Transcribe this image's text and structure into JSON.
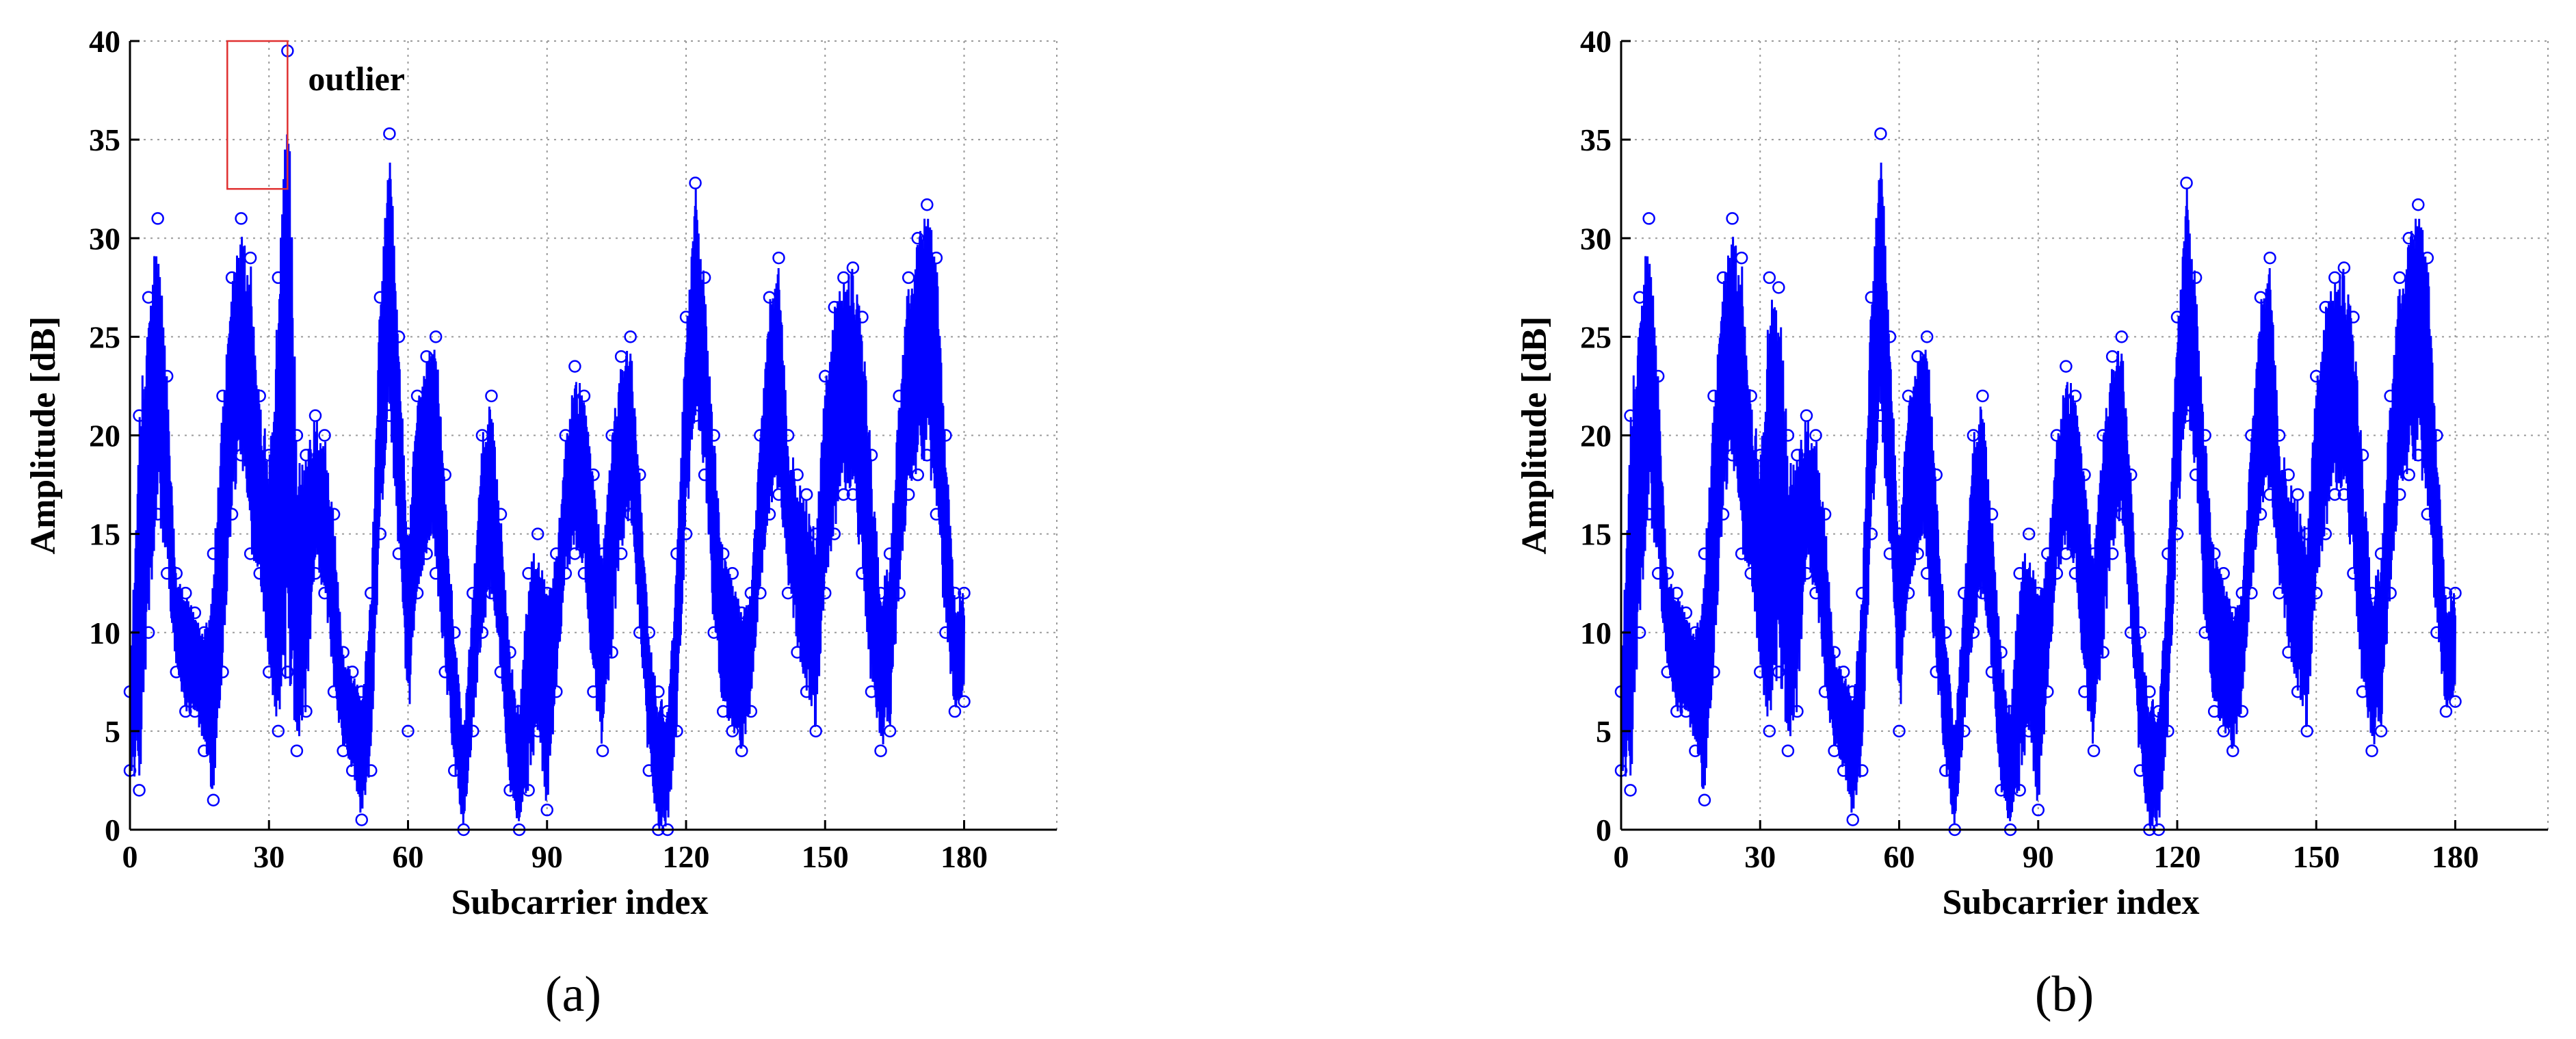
{
  "chart_data": [
    {
      "type": "line",
      "panel": "a",
      "caption": "(a)",
      "xlabel": "Subcarrier index",
      "ylabel": "Amplitude [dB]",
      "xlim": [
        0,
        200
      ],
      "ylim": [
        0,
        40
      ],
      "xticks": [
        0,
        30,
        60,
        90,
        120,
        150,
        180
      ],
      "yticks": [
        0,
        5,
        10,
        15,
        20,
        25,
        30,
        35,
        40
      ],
      "grid": true,
      "series_color": "#0000ff",
      "marker": "circle",
      "annotation": {
        "text": "outlier",
        "box_x": [
          21,
          34
        ],
        "box_y": [
          32.5,
          40
        ]
      },
      "envelope": {
        "x": [
          0,
          2,
          4,
          6,
          8,
          10,
          12,
          14,
          16,
          18,
          20,
          22,
          24,
          26,
          28,
          30,
          32,
          34,
          36,
          38,
          40,
          42,
          44,
          46,
          48,
          50,
          52,
          54,
          56,
          58,
          60,
          62,
          64,
          66,
          68,
          70,
          72,
          74,
          76,
          78,
          80,
          82,
          84,
          86,
          88,
          90,
          92,
          94,
          96,
          98,
          100,
          102,
          104,
          106,
          108,
          110,
          112,
          114,
          116,
          118,
          120,
          122,
          124,
          126,
          128,
          130,
          132,
          134,
          136,
          138,
          140,
          142,
          144,
          146,
          148,
          150,
          152,
          154,
          156,
          158,
          160,
          162,
          164,
          166,
          168,
          170,
          172,
          174,
          176,
          178,
          180
        ],
        "upper": [
          7,
          21,
          27,
          31,
          23,
          13,
          12,
          11,
          10,
          14,
          22,
          28,
          31,
          29,
          22,
          19,
          28,
          39.5,
          20,
          19,
          21,
          20,
          16,
          9,
          8,
          7,
          12,
          27,
          35.3,
          25,
          15,
          22,
          24,
          25,
          18,
          10,
          5,
          12,
          20,
          22,
          16,
          9,
          6,
          13,
          15,
          12,
          14,
          20,
          23.5,
          22,
          18,
          14,
          20,
          24,
          25,
          18,
          10,
          7,
          6,
          14,
          26,
          32.8,
          28,
          20,
          14,
          13,
          11,
          12,
          20,
          27,
          29,
          20,
          18,
          17,
          15,
          23,
          26.5,
          28,
          28.5,
          26,
          19,
          12,
          14,
          22,
          28,
          30,
          31.7,
          29,
          20,
          12,
          12
        ],
        "lower": [
          3,
          2,
          10,
          16,
          13,
          8,
          6,
          6,
          4,
          1.5,
          8,
          16,
          19,
          14,
          13,
          8,
          5,
          8,
          4,
          6,
          13,
          12,
          7,
          4,
          3,
          0.5,
          3,
          15,
          21,
          14,
          5,
          12,
          14,
          13,
          8,
          3,
          0,
          5,
          10,
          12,
          8,
          2,
          0,
          2,
          5,
          1,
          7,
          13,
          14,
          13,
          7,
          4,
          9,
          14,
          16,
          10,
          3,
          0,
          0,
          5,
          15,
          21,
          18,
          10,
          6,
          5,
          4,
          6,
          12,
          16,
          17,
          12,
          9,
          7,
          5,
          12,
          15,
          17,
          17,
          13,
          7,
          4,
          5,
          12,
          17,
          18,
          19,
          16,
          10,
          6,
          6.5
        ]
      }
    },
    {
      "type": "line",
      "panel": "b",
      "caption": "(b)",
      "xlabel": "Subcarrier index",
      "ylabel": "Amplitude [dB]",
      "xlim": [
        0,
        200
      ],
      "ylim": [
        0,
        40
      ],
      "xticks": [
        0,
        30,
        60,
        90,
        120,
        150,
        180
      ],
      "yticks": [
        0,
        5,
        10,
        15,
        20,
        25,
        30,
        35,
        40
      ],
      "grid": true,
      "series_color": "#0000ff",
      "marker": "circle",
      "envelope": {
        "x": [
          0,
          2,
          4,
          6,
          8,
          10,
          12,
          14,
          16,
          18,
          20,
          22,
          24,
          26,
          28,
          30,
          32,
          34,
          36,
          38,
          40,
          42,
          44,
          46,
          48,
          50,
          52,
          54,
          56,
          58,
          60,
          62,
          64,
          66,
          68,
          70,
          72,
          74,
          76,
          78,
          80,
          82,
          84,
          86,
          88,
          90,
          92,
          94,
          96,
          98,
          100,
          102,
          104,
          106,
          108,
          110,
          112,
          114,
          116,
          118,
          120,
          122,
          124,
          126,
          128,
          130,
          132,
          134,
          136,
          138,
          140,
          142,
          144,
          146,
          148,
          150,
          152,
          154,
          156,
          158,
          160,
          162,
          164,
          166,
          168,
          170,
          172,
          174,
          176,
          178,
          180
        ],
        "upper": [
          7,
          21,
          27,
          31,
          23,
          13,
          12,
          11,
          10,
          14,
          22,
          28,
          31,
          29,
          22,
          19,
          28,
          27.5,
          20,
          19,
          21,
          20,
          16,
          9,
          8,
          7,
          12,
          27,
          35.3,
          25,
          15,
          22,
          24,
          25,
          18,
          10,
          5,
          12,
          20,
          22,
          16,
          9,
          6,
          13,
          15,
          12,
          14,
          20,
          23.5,
          22,
          18,
          14,
          20,
          24,
          25,
          18,
          10,
          7,
          6,
          14,
          26,
          32.8,
          28,
          20,
          14,
          13,
          11,
          12,
          20,
          27,
          29,
          20,
          18,
          17,
          15,
          23,
          26.5,
          28,
          28.5,
          26,
          19,
          12,
          14,
          22,
          28,
          30,
          31.7,
          29,
          20,
          12,
          12
        ],
        "lower": [
          3,
          2,
          10,
          16,
          13,
          8,
          6,
          6,
          4,
          1.5,
          8,
          16,
          19,
          14,
          13,
          8,
          5,
          8,
          4,
          6,
          13,
          12,
          7,
          4,
          3,
          0.5,
          3,
          15,
          21,
          14,
          5,
          12,
          14,
          13,
          8,
          3,
          0,
          5,
          10,
          12,
          8,
          2,
          0,
          2,
          5,
          1,
          7,
          13,
          14,
          13,
          7,
          4,
          9,
          14,
          16,
          10,
          3,
          0,
          0,
          5,
          15,
          21,
          18,
          10,
          6,
          5,
          4,
          6,
          12,
          16,
          17,
          12,
          9,
          7,
          5,
          12,
          15,
          17,
          17,
          13,
          7,
          4,
          5,
          12,
          17,
          18,
          19,
          16,
          10,
          6,
          6.5
        ]
      }
    }
  ]
}
